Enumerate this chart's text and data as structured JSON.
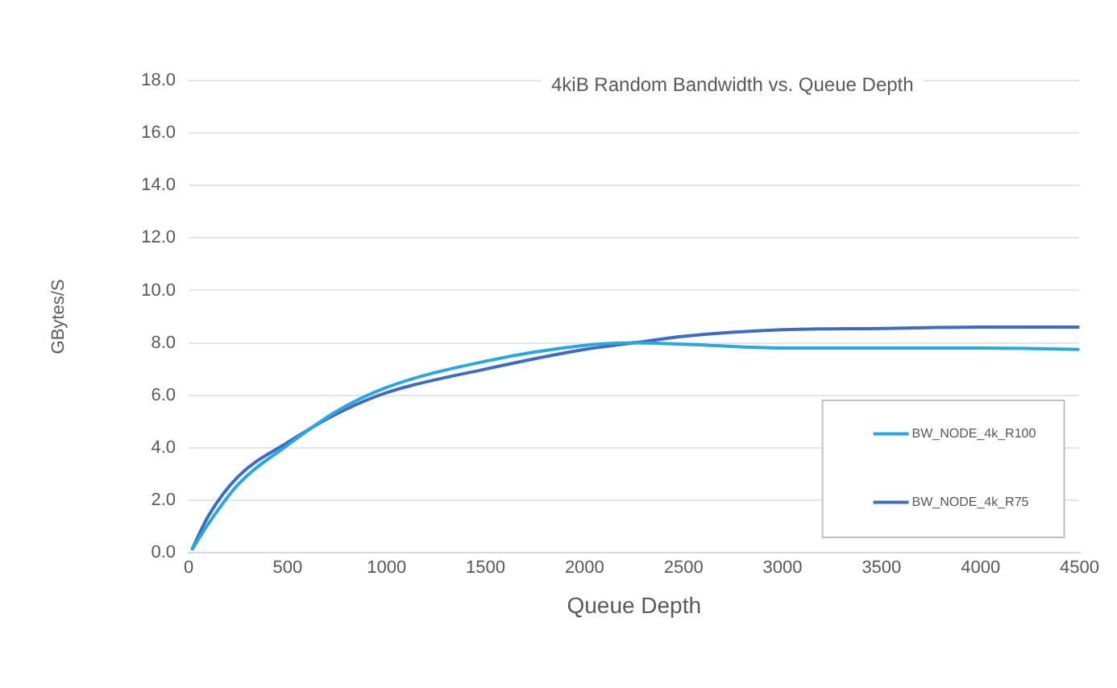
{
  "chart_data": {
    "type": "line",
    "title": "4kiB Random Bandwidth vs. Queue Depth",
    "xlabel": "Queue Depth",
    "ylabel": "GBytes/S",
    "xlim": [
      0,
      4500
    ],
    "xticks": [
      0,
      500,
      1000,
      1500,
      2000,
      2500,
      3000,
      3500,
      4000,
      4500
    ],
    "ylim": [
      0,
      18
    ],
    "yticks": [
      {
        "value": 0,
        "label": "0.0"
      },
      {
        "value": 2,
        "label": "2.0"
      },
      {
        "value": 4,
        "label": "4.0"
      },
      {
        "value": 6,
        "label": "6.0"
      },
      {
        "value": 8,
        "label": "8.0"
      },
      {
        "value": 10,
        "label": "10.0"
      },
      {
        "value": 12,
        "label": "12.0"
      },
      {
        "value": 14,
        "label": "14.0"
      },
      {
        "value": 16,
        "label": "16.0"
      },
      {
        "value": 18,
        "label": "18.0"
      }
    ],
    "grid": "y",
    "legend": "bottom right",
    "marker": "none",
    "line_style": "solid",
    "series": [
      {
        "name": "BW_NODE_4k_R100",
        "color": "#29a8e0",
        "x": [
          16,
          100,
          250,
          500,
          750,
          1000,
          1500,
          2000,
          2250,
          2500,
          3000,
          3500,
          4000,
          4500
        ],
        "values": [
          0.1,
          1.1,
          2.6,
          4.1,
          5.4,
          6.3,
          7.3,
          7.9,
          8.0,
          7.95,
          7.8,
          7.8,
          7.8,
          7.75
        ]
      },
      {
        "name": "BW_NODE_4k_R75",
        "color": "#3f6cc0",
        "x": [
          16,
          100,
          250,
          500,
          750,
          1000,
          1500,
          2000,
          2250,
          2500,
          3000,
          3500,
          4000,
          4500
        ],
        "values": [
          0.1,
          1.4,
          2.9,
          4.2,
          5.3,
          6.1,
          7.0,
          7.75,
          8.0,
          8.25,
          8.5,
          8.55,
          8.6,
          8.6
        ]
      }
    ]
  }
}
